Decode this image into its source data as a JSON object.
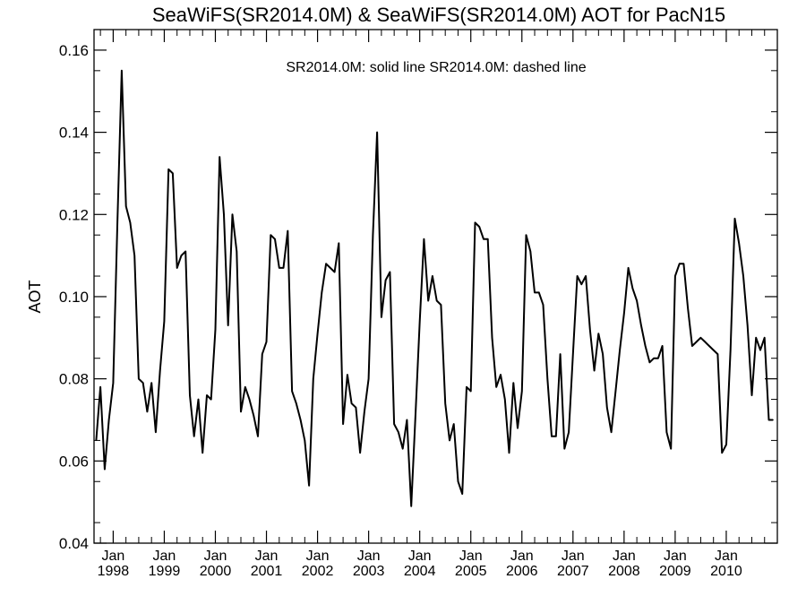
{
  "chart_data": {
    "type": "line",
    "title": "SeaWiFS(SR2014.0M) & SeaWiFS(SR2014.0M)  AOT for PacN15",
    "annotation": "SR2014.0M: solid line   SR2014.0M: dashed line",
    "ylabel": "AOT",
    "xlabel": "",
    "xlim": [
      "1997-09",
      "2010-12"
    ],
    "ylim": [
      0.04,
      0.165
    ],
    "yticks": [
      0.04,
      0.06,
      0.08,
      0.1,
      0.12,
      0.14,
      0.16
    ],
    "ytick_labels": [
      "0.04",
      "0.06",
      "0.08",
      "0.10",
      "0.12",
      "0.14",
      "0.16"
    ],
    "xticks": [
      {
        "date": "1998-01",
        "month": "Jan",
        "year": "1998"
      },
      {
        "date": "1999-01",
        "month": "Jan",
        "year": "1999"
      },
      {
        "date": "2000-01",
        "month": "Jan",
        "year": "2000"
      },
      {
        "date": "2001-01",
        "month": "Jan",
        "year": "2001"
      },
      {
        "date": "2002-01",
        "month": "Jan",
        "year": "2002"
      },
      {
        "date": "2003-01",
        "month": "Jan",
        "year": "2003"
      },
      {
        "date": "2004-01",
        "month": "Jan",
        "year": "2004"
      },
      {
        "date": "2005-01",
        "month": "Jan",
        "year": "2005"
      },
      {
        "date": "2006-01",
        "month": "Jan",
        "year": "2006"
      },
      {
        "date": "2007-01",
        "month": "Jan",
        "year": "2007"
      },
      {
        "date": "2008-01",
        "month": "Jan",
        "year": "2008"
      },
      {
        "date": "2009-01",
        "month": "Jan",
        "year": "2009"
      },
      {
        "date": "2010-01",
        "month": "Jan",
        "year": "2010"
      }
    ],
    "grid": false,
    "series": [
      {
        "line_style": "solid",
        "color": "#000000",
        "points": [
          [
            "1997-09",
            0.065
          ],
          [
            "1997-10",
            0.078
          ],
          [
            "1997-11",
            0.058
          ],
          [
            "1997-12",
            0.07
          ],
          [
            "1998-01",
            0.079
          ],
          [
            "1998-02",
            0.118
          ],
          [
            "1998-03",
            0.155
          ],
          [
            "1998-04",
            0.122
          ],
          [
            "1998-05",
            0.118
          ],
          [
            "1998-06",
            0.11
          ],
          [
            "1998-07",
            0.08
          ],
          [
            "1998-08",
            0.079
          ],
          [
            "1998-09",
            0.072
          ],
          [
            "1998-10",
            0.079
          ],
          [
            "1998-11",
            0.067
          ],
          [
            "1998-12",
            0.082
          ],
          [
            "1999-01",
            0.094
          ],
          [
            "1999-02",
            0.131
          ],
          [
            "1999-03",
            0.13
          ],
          [
            "1999-04",
            0.107
          ],
          [
            "1999-05",
            0.11
          ],
          [
            "1999-06",
            0.111
          ],
          [
            "1999-07",
            0.076
          ],
          [
            "1999-08",
            0.066
          ],
          [
            "1999-09",
            0.075
          ],
          [
            "1999-10",
            0.062
          ],
          [
            "1999-11",
            0.076
          ],
          [
            "1999-12",
            0.075
          ],
          [
            "2000-01",
            0.092
          ],
          [
            "2000-02",
            0.134
          ],
          [
            "2000-03",
            0.12
          ],
          [
            "2000-04",
            0.093
          ],
          [
            "2000-05",
            0.12
          ],
          [
            "2000-06",
            0.111
          ],
          [
            "2000-07",
            0.072
          ],
          [
            "2000-08",
            0.078
          ],
          [
            "2000-09",
            0.075
          ],
          [
            "2000-10",
            0.071
          ],
          [
            "2000-11",
            0.066
          ],
          [
            "2000-12",
            0.086
          ],
          [
            "2001-01",
            0.089
          ],
          [
            "2001-02",
            0.115
          ],
          [
            "2001-03",
            0.114
          ],
          [
            "2001-04",
            0.107
          ],
          [
            "2001-05",
            0.107
          ],
          [
            "2001-06",
            0.116
          ],
          [
            "2001-07",
            0.077
          ],
          [
            "2001-08",
            0.074
          ],
          [
            "2001-09",
            0.07
          ],
          [
            "2001-10",
            0.065
          ],
          [
            "2001-11",
            0.054
          ],
          [
            "2001-12",
            0.08
          ],
          [
            "2002-01",
            0.091
          ],
          [
            "2002-02",
            0.101
          ],
          [
            "2002-03",
            0.108
          ],
          [
            "2002-04",
            0.107
          ],
          [
            "2002-05",
            0.106
          ],
          [
            "2002-06",
            0.113
          ],
          [
            "2002-07",
            0.069
          ],
          [
            "2002-08",
            0.081
          ],
          [
            "2002-09",
            0.074
          ],
          [
            "2002-10",
            0.073
          ],
          [
            "2002-11",
            0.062
          ],
          [
            "2002-12",
            0.072
          ],
          [
            "2003-01",
            0.08
          ],
          [
            "2003-02",
            0.115
          ],
          [
            "2003-03",
            0.14
          ],
          [
            "2003-04",
            0.095
          ],
          [
            "2003-05",
            0.104
          ],
          [
            "2003-06",
            0.106
          ],
          [
            "2003-07",
            0.069
          ],
          [
            "2003-08",
            0.067
          ],
          [
            "2003-09",
            0.063
          ],
          [
            "2003-10",
            0.07
          ],
          [
            "2003-11",
            0.049
          ],
          [
            "2003-12",
            0.071
          ],
          [
            "2004-01",
            0.094
          ],
          [
            "2004-02",
            0.114
          ],
          [
            "2004-03",
            0.099
          ],
          [
            "2004-04",
            0.105
          ],
          [
            "2004-05",
            0.099
          ],
          [
            "2004-06",
            0.098
          ],
          [
            "2004-07",
            0.074
          ],
          [
            "2004-08",
            0.065
          ],
          [
            "2004-09",
            0.069
          ],
          [
            "2004-10",
            0.055
          ],
          [
            "2004-11",
            0.052
          ],
          [
            "2004-12",
            0.078
          ],
          [
            "2005-01",
            0.077
          ],
          [
            "2005-02",
            0.118
          ],
          [
            "2005-03",
            0.117
          ],
          [
            "2005-04",
            0.114
          ],
          [
            "2005-05",
            0.114
          ],
          [
            "2005-06",
            0.09
          ],
          [
            "2005-07",
            0.078
          ],
          [
            "2005-08",
            0.081
          ],
          [
            "2005-09",
            0.075
          ],
          [
            "2005-10",
            0.062
          ],
          [
            "2005-11",
            0.079
          ],
          [
            "2005-12",
            0.068
          ],
          [
            "2006-01",
            0.077
          ],
          [
            "2006-02",
            0.115
          ],
          [
            "2006-03",
            0.111
          ],
          [
            "2006-04",
            0.101
          ],
          [
            "2006-05",
            0.101
          ],
          [
            "2006-06",
            0.098
          ],
          [
            "2006-07",
            0.08
          ],
          [
            "2006-08",
            0.066
          ],
          [
            "2006-09",
            0.066
          ],
          [
            "2006-10",
            0.086
          ],
          [
            "2006-11",
            0.063
          ],
          [
            "2006-12",
            0.067
          ],
          [
            "2007-01",
            0.086
          ],
          [
            "2007-02",
            0.105
          ],
          [
            "2007-03",
            0.103
          ],
          [
            "2007-04",
            0.105
          ],
          [
            "2007-05",
            0.092
          ],
          [
            "2007-06",
            0.082
          ],
          [
            "2007-07",
            0.091
          ],
          [
            "2007-08",
            0.086
          ],
          [
            "2007-09",
            0.073
          ],
          [
            "2007-10",
            0.067
          ],
          [
            "2007-11",
            0.077
          ],
          [
            "2007-12",
            0.087
          ],
          [
            "2008-01",
            0.096
          ],
          [
            "2008-02",
            0.107
          ],
          [
            "2008-03",
            0.102
          ],
          [
            "2008-04",
            0.099
          ],
          [
            "2008-05",
            0.093
          ],
          [
            "2008-06",
            0.088
          ],
          [
            "2008-07",
            0.084
          ],
          [
            "2008-08",
            0.085
          ],
          [
            "2008-09",
            0.085
          ],
          [
            "2008-10",
            0.088
          ],
          [
            "2008-11",
            0.067
          ],
          [
            "2008-12",
            0.063
          ],
          [
            "2009-01",
            0.105
          ],
          [
            "2009-02",
            0.108
          ],
          [
            "2009-03",
            0.108
          ],
          [
            "2009-04",
            0.097
          ],
          [
            "2009-05",
            0.088
          ],
          [
            "2009-06",
            0.089
          ],
          [
            "2009-07",
            0.09
          ],
          [
            "2009-08",
            0.089
          ],
          [
            "2009-09",
            0.088
          ],
          [
            "2009-10",
            0.087
          ],
          [
            "2009-11",
            0.086
          ],
          [
            "2009-12",
            0.062
          ],
          [
            "2010-01",
            0.064
          ],
          [
            "2010-02",
            0.087
          ],
          [
            "2010-03",
            0.119
          ],
          [
            "2010-04",
            0.113
          ],
          [
            "2010-05",
            0.105
          ],
          [
            "2010-06",
            0.093
          ],
          [
            "2010-07",
            0.076
          ],
          [
            "2010-08",
            0.09
          ],
          [
            "2010-09",
            0.087
          ],
          [
            "2010-10",
            0.09
          ],
          [
            "2010-11",
            0.07
          ],
          [
            "2010-12",
            0.07
          ]
        ]
      }
    ]
  }
}
